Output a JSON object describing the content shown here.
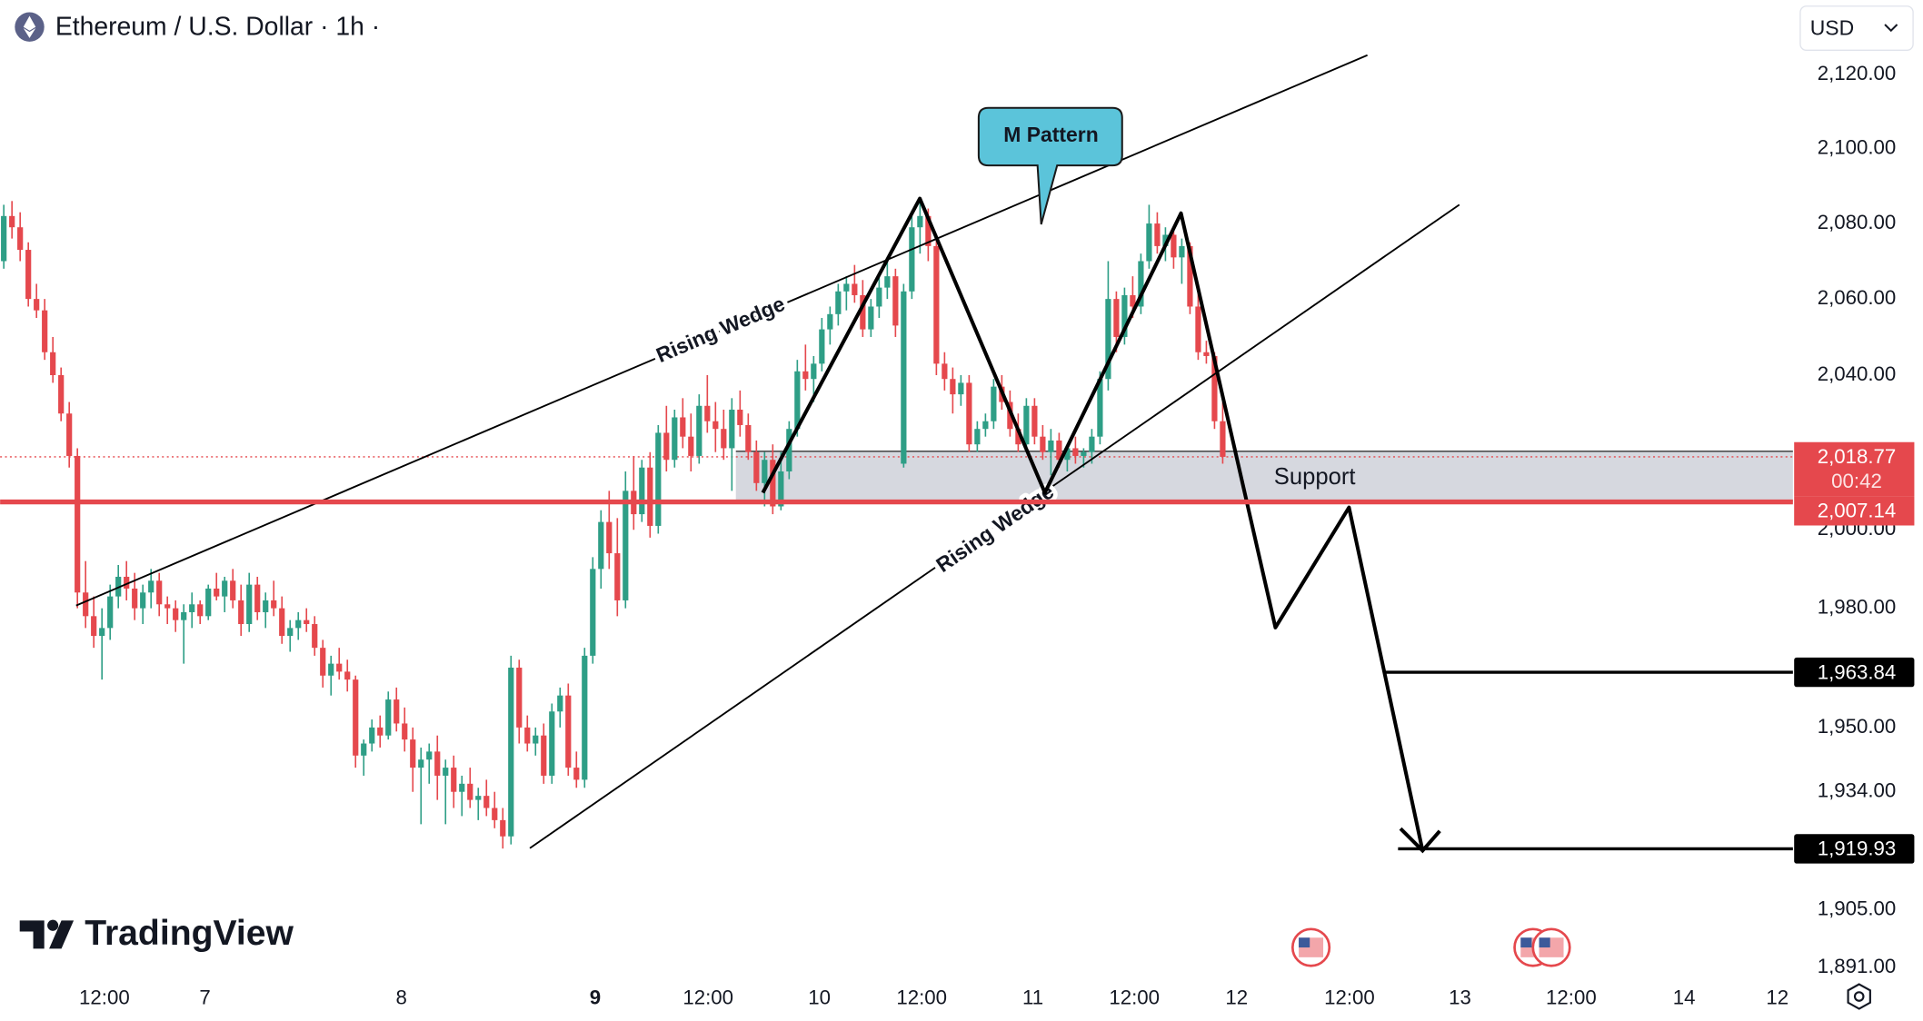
{
  "header": {
    "symbol": "Ethereum / U.S. Dollar · 1h ·",
    "currency": "USD",
    "watermark": "TradingView"
  },
  "chart_data": {
    "type": "candlestick",
    "log_scale": true,
    "up_color": "#2e9e86",
    "down_color": "#e5484d",
    "xlim": [
      -0.45,
      218.7
    ],
    "ylim": [
      1889.3,
      2140.4
    ],
    "xticks": [
      {
        "value": 12.3,
        "label": "12:00"
      },
      {
        "value": 24.6,
        "label": "7"
      },
      {
        "value": 48.6,
        "label": "8"
      },
      {
        "value": 72.3,
        "label": "9"
      },
      {
        "value": 86.1,
        "label": "12:00"
      },
      {
        "value": 99.7,
        "label": "10"
      },
      {
        "value": 112.2,
        "label": "12:00"
      },
      {
        "value": 125.8,
        "label": "11"
      },
      {
        "value": 138.2,
        "label": "12:00"
      },
      {
        "value": 150.7,
        "label": "12"
      },
      {
        "value": 164.5,
        "label": "12:00"
      },
      {
        "value": 178.0,
        "label": "13"
      },
      {
        "value": 191.6,
        "label": "12:00"
      },
      {
        "value": 205.4,
        "label": "14"
      },
      {
        "value": 216.8,
        "label": "12"
      }
    ],
    "yticks": [
      {
        "value": 2120,
        "label": "2,120.00"
      },
      {
        "value": 2100,
        "label": "2,100.00"
      },
      {
        "value": 2080,
        "label": "2,080.00"
      },
      {
        "value": 2060,
        "label": "2,060.00"
      },
      {
        "value": 2040,
        "label": "2,040.00"
      },
      {
        "value": 2000,
        "label": "2,000.00"
      },
      {
        "value": 1980,
        "label": "1,980.00"
      },
      {
        "value": 1950,
        "label": "1,950.00"
      },
      {
        "value": 1934,
        "label": "1,934.00"
      },
      {
        "value": 1905,
        "label": "1,905.00"
      },
      {
        "value": 1891,
        "label": "1,891.00"
      }
    ],
    "last_price": {
      "value": 2018.77,
      "label": "2,018.77"
    },
    "countdown": "00:42",
    "levels": [
      {
        "value": 2007.14,
        "label": "2,007.14",
        "color": "#e5484d"
      },
      {
        "value": 1963.84,
        "label": "1,963.84",
        "color": "#000000"
      },
      {
        "value": 1919.93,
        "label": "1,919.93",
        "color": "#000000"
      }
    ],
    "support": {
      "label": "Support",
      "low": 2007.14,
      "high": 2020.2
    },
    "annotations": {
      "wedge_upper": "Rising Wedge",
      "wedge_lower": "Rising Wedge",
      "m_pattern": "M Pattern"
    },
    "candles": [
      [
        2070,
        2085,
        2068,
        2082
      ],
      [
        2082,
        2086,
        2076,
        2079
      ],
      [
        2079,
        2083,
        2070,
        2073
      ],
      [
        2073,
        2075,
        2058,
        2060
      ],
      [
        2060,
        2064,
        2055,
        2057
      ],
      [
        2057,
        2060,
        2044,
        2046
      ],
      [
        2046,
        2050,
        2038,
        2040
      ],
      [
        2040,
        2042,
        2028,
        2030
      ],
      [
        2030,
        2033,
        2016,
        2019
      ],
      [
        2019,
        2021,
        1980,
        1984
      ],
      [
        1984,
        1992,
        1975,
        1978
      ],
      [
        1978,
        1983,
        1970,
        1973
      ],
      [
        1973,
        1980,
        1962,
        1975
      ],
      [
        1975,
        1986,
        1972,
        1983
      ],
      [
        1983,
        1991,
        1980,
        1988
      ],
      [
        1988,
        1992,
        1982,
        1985
      ],
      [
        1985,
        1989,
        1977,
        1980
      ],
      [
        1980,
        1986,
        1976,
        1984
      ],
      [
        1984,
        1990,
        1980,
        1987
      ],
      [
        1987,
        1989,
        1978,
        1981
      ],
      [
        1981,
        1983,
        1976,
        1980
      ],
      [
        1980,
        1982,
        1974,
        1977
      ],
      [
        1977,
        1981,
        1966,
        1979
      ],
      [
        1979,
        1984,
        1975,
        1981
      ],
      [
        1981,
        1982,
        1976,
        1978
      ],
      [
        1978,
        1986,
        1977,
        1985
      ],
      [
        1985,
        1989,
        1982,
        1983
      ],
      [
        1983,
        1988,
        1979,
        1987
      ],
      [
        1987,
        1990,
        1980,
        1982
      ],
      [
        1982,
        1986,
        1973,
        1976
      ],
      [
        1976,
        1989,
        1974,
        1986
      ],
      [
        1986,
        1988,
        1977,
        1979
      ],
      [
        1979,
        1984,
        1975,
        1982
      ],
      [
        1982,
        1987,
        1978,
        1980
      ],
      [
        1980,
        1983,
        1971,
        1973
      ],
      [
        1973,
        1977,
        1969,
        1975
      ],
      [
        1975,
        1979,
        1972,
        1977
      ],
      [
        1977,
        1980,
        1974,
        1976
      ],
      [
        1976,
        1978,
        1968,
        1970
      ],
      [
        1970,
        1972,
        1960,
        1963
      ],
      [
        1963,
        1968,
        1958,
        1966
      ],
      [
        1966,
        1970,
        1962,
        1964
      ],
      [
        1964,
        1967,
        1959,
        1962
      ],
      [
        1962,
        1963,
        1940,
        1943
      ],
      [
        1943,
        1947,
        1938,
        1946
      ],
      [
        1946,
        1952,
        1944,
        1950
      ],
      [
        1950,
        1953,
        1945,
        1948
      ],
      [
        1948,
        1959,
        1947,
        1957
      ],
      [
        1957,
        1960,
        1949,
        1951
      ],
      [
        1951,
        1955,
        1944,
        1947
      ],
      [
        1947,
        1950,
        1934,
        1940
      ],
      [
        1940,
        1945,
        1926,
        1942
      ],
      [
        1942,
        1946,
        1936,
        1944
      ],
      [
        1944,
        1948,
        1932,
        1938
      ],
      [
        1938,
        1942,
        1926,
        1940
      ],
      [
        1940,
        1943,
        1930,
        1934
      ],
      [
        1934,
        1938,
        1928,
        1936
      ],
      [
        1936,
        1940,
        1930,
        1932
      ],
      [
        1932,
        1935,
        1927,
        1933
      ],
      [
        1933,
        1937,
        1928,
        1930
      ],
      [
        1930,
        1934,
        1925,
        1927
      ],
      [
        1927,
        1930,
        1920,
        1923
      ],
      [
        1923,
        1968,
        1921,
        1965
      ],
      [
        1965,
        1967,
        1946,
        1950
      ],
      [
        1950,
        1953,
        1944,
        1946
      ],
      [
        1946,
        1950,
        1943,
        1948
      ],
      [
        1948,
        1951,
        1936,
        1938
      ],
      [
        1938,
        1956,
        1936,
        1954
      ],
      [
        1954,
        1960,
        1950,
        1958
      ],
      [
        1958,
        1961,
        1938,
        1940
      ],
      [
        1940,
        1944,
        1935,
        1937
      ],
      [
        1937,
        1970,
        1935,
        1968
      ],
      [
        1968,
        1993,
        1966,
        1990
      ],
      [
        1990,
        2005,
        1985,
        2002
      ],
      [
        2002,
        2010,
        1990,
        1994
      ],
      [
        1994,
        2003,
        1978,
        1982
      ],
      [
        1982,
        2015,
        1980,
        2010
      ],
      [
        2010,
        2019,
        2000,
        2004
      ],
      [
        2004,
        2018,
        2002,
        2016
      ],
      [
        2016,
        2020,
        1998,
        2001
      ],
      [
        2001,
        2027,
        1999,
        2025
      ],
      [
        2025,
        2032,
        2015,
        2018
      ],
      [
        2018,
        2031,
        2016,
        2029
      ],
      [
        2029,
        2034,
        2021,
        2024
      ],
      [
        2024,
        2030,
        2015,
        2019
      ],
      [
        2019,
        2035,
        2017,
        2032
      ],
      [
        2032,
        2040,
        2025,
        2028
      ],
      [
        2028,
        2033,
        2020,
        2026
      ],
      [
        2026,
        2031,
        2018,
        2021
      ],
      [
        2021,
        2034,
        2010,
        2031
      ],
      [
        2031,
        2036,
        2024,
        2027
      ],
      [
        2027,
        2030,
        2018,
        2020
      ],
      [
        2020,
        2023,
        2010,
        2012
      ],
      [
        2012,
        2020,
        2006,
        2018
      ],
      [
        2018,
        2022,
        2004,
        2006
      ],
      [
        2006,
        2020,
        2005,
        2015
      ],
      [
        2015,
        2028,
        2013,
        2026
      ],
      [
        2026,
        2044,
        2024,
        2041
      ],
      [
        2041,
        2048,
        2036,
        2039
      ],
      [
        2039,
        2045,
        2033,
        2043
      ],
      [
        2043,
        2055,
        2041,
        2052
      ],
      [
        2052,
        2058,
        2048,
        2056
      ],
      [
        2056,
        2064,
        2053,
        2062
      ],
      [
        2062,
        2066,
        2057,
        2064
      ],
      [
        2064,
        2069,
        2059,
        2061
      ],
      [
        2061,
        2065,
        2050,
        2052
      ],
      [
        2052,
        2060,
        2050,
        2058
      ],
      [
        2058,
        2066,
        2055,
        2063
      ],
      [
        2063,
        2070,
        2060,
        2066
      ],
      [
        2066,
        2068,
        2050,
        2053
      ],
      [
        2017,
        2064,
        2016,
        2062
      ],
      [
        2062,
        2082,
        2060,
        2079
      ],
      [
        2079,
        2086,
        2072,
        2082
      ],
      [
        2082,
        2084,
        2070,
        2074
      ],
      [
        2074,
        2077,
        2040,
        2043
      ],
      [
        2043,
        2046,
        2036,
        2039
      ],
      [
        2039,
        2042,
        2030,
        2035
      ],
      [
        2035,
        2040,
        2032,
        2038
      ],
      [
        2038,
        2040,
        2020,
        2022
      ],
      [
        2022,
        2028,
        2020,
        2026
      ],
      [
        2026,
        2030,
        2024,
        2028
      ],
      [
        2028,
        2039,
        2026,
        2037
      ],
      [
        2037,
        2040,
        2031,
        2033
      ],
      [
        2033,
        2036,
        2024,
        2026
      ],
      [
        2026,
        2030,
        2020,
        2022
      ],
      [
        2022,
        2034,
        2020,
        2032
      ],
      [
        2032,
        2034,
        2022,
        2024
      ],
      [
        2024,
        2027,
        2018,
        2020
      ],
      [
        2020,
        2026,
        2014,
        2023
      ],
      [
        2023,
        2025,
        2016,
        2018
      ],
      [
        2018,
        2022,
        2015,
        2021
      ],
      [
        2021,
        2024,
        2017,
        2019
      ],
      [
        2019,
        2021,
        2016,
        2020
      ],
      [
        2020,
        2026,
        2017,
        2024
      ],
      [
        2024,
        2041,
        2022,
        2039
      ],
      [
        2039,
        2070,
        2036,
        2060
      ],
      [
        2060,
        2062,
        2046,
        2050
      ],
      [
        2050,
        2063,
        2048,
        2061
      ],
      [
        2061,
        2066,
        2055,
        2058
      ],
      [
        2058,
        2072,
        2056,
        2070
      ],
      [
        2070,
        2085,
        2068,
        2080
      ],
      [
        2080,
        2083,
        2072,
        2074
      ],
      [
        2074,
        2079,
        2070,
        2077
      ],
      [
        2077,
        2079,
        2068,
        2071
      ],
      [
        2071,
        2076,
        2064,
        2074
      ],
      [
        2074,
        2075,
        2056,
        2058
      ],
      [
        2058,
        2062,
        2044,
        2046
      ],
      [
        2046,
        2049,
        2043,
        2045
      ],
      [
        2045,
        2046,
        2026,
        2028
      ],
      [
        2028,
        2033,
        2017,
        2018.77
      ]
    ]
  }
}
